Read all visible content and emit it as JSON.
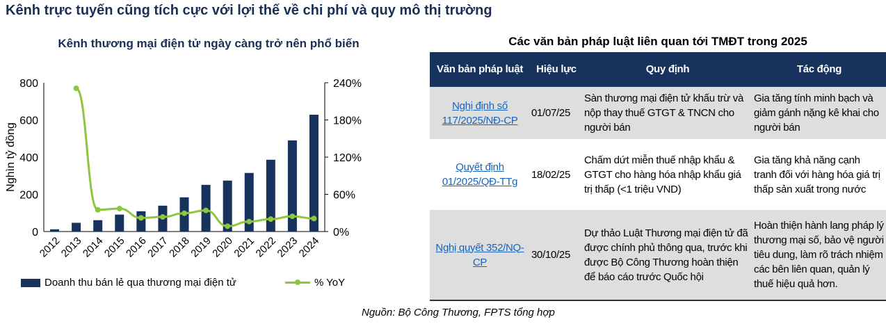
{
  "title": "Kênh trực tuyến cũng tích cực với lợi thế về chi phí và quy mô thị trường",
  "chart_data": {
    "type": "bar+line",
    "title": "Kênh thương mại điện tử ngày càng trở nên phổ biến",
    "ylabel": "Nghìn tỷ đồng",
    "categories": [
      "2012",
      "2013",
      "2014",
      "2015",
      "2016",
      "2017",
      "2018",
      "2019",
      "2020",
      "2021",
      "2022",
      "2023",
      "2024"
    ],
    "ylim": [
      0,
      800
    ],
    "yticks": [
      "0",
      "200",
      "400",
      "600",
      "800"
    ],
    "y2lim": [
      0,
      240
    ],
    "y2ticks": [
      "0%",
      "60%",
      "120%",
      "180%",
      "240%"
    ],
    "series": [
      {
        "name": "Doanh thu bán lẻ qua thương mại điện tử",
        "type": "bar",
        "axis": "left",
        "color": "#17325c",
        "values": [
          12,
          47,
          61,
          91,
          109,
          139,
          184,
          251,
          274,
          315,
          386,
          490,
          628
        ]
      },
      {
        "name": "% YoY",
        "type": "line",
        "axis": "right",
        "color": "#8dc63f",
        "values": [
          null,
          231,
          35,
          37,
          22,
          23.5,
          29.5,
          34,
          8.6,
          16,
          20,
          24.6,
          21
        ]
      }
    ],
    "legend": "bottom"
  },
  "table": {
    "title": "Các văn bản pháp luật liên quan tới TMĐT trong 2025",
    "headers": [
      "Văn bản pháp luật",
      "Hiệu lực",
      "Quy định",
      "Tác động"
    ],
    "rows": [
      [
        "Nghị định số 117/2025/NĐ-CP",
        "01/07/25",
        "Sàn thương mại điện tử khấu trừ và nộp thay thuế GTGT & TNCN cho người bán",
        "Gia tăng tính minh bạch và giảm gánh nặng kê khai cho người bán"
      ],
      [
        "Quyết định 01/2025/QĐ-TTg",
        "18/02/25",
        "Chấm dứt miễn thuế nhập khẩu & GTGT cho hàng hóa nhập khẩu giá trị thấp (<1 triệu VND)",
        "Gia tăng khả năng cạnh tranh đối với hàng hóa giá trị thấp sản xuất trong nước"
      ],
      [
        "Nghị quyết 352/NQ-CP",
        "30/10/25",
        "Dự thảo Luật Thương mại điện tử đã được chính phủ thông qua, trước khi được Bộ Công Thương hoàn thiện để báo cáo trước Quốc hội",
        "Hoàn thiện hành lang pháp lý thương mại số, bảo vệ người tiêu dung, làm rõ trách nhiệm các bên liên quan, quản lý thuế hiệu quả hơn."
      ]
    ]
  },
  "source": "Nguồn: Bộ Công Thương, FPTS tổng hợp"
}
